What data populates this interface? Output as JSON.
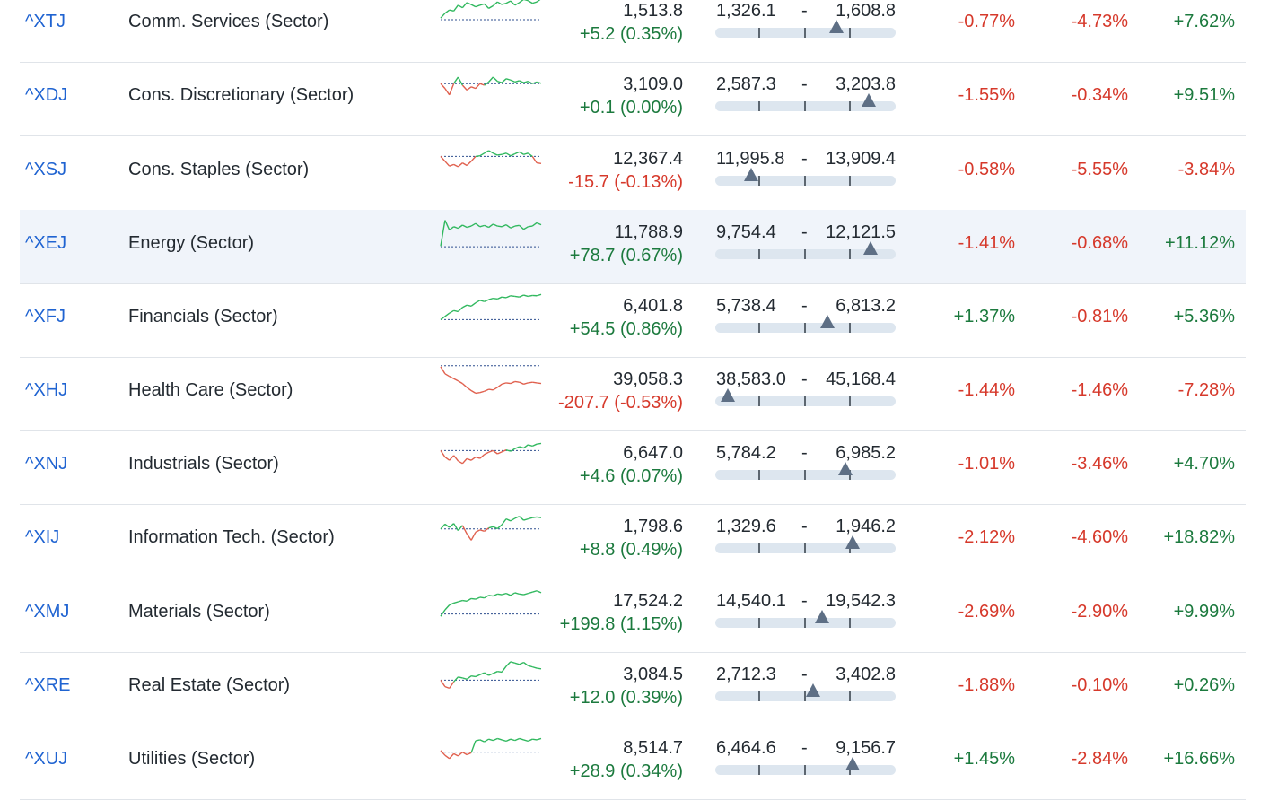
{
  "colors": {
    "up": "#1c7a3e",
    "down": "#d6392b",
    "link": "#1f63d1",
    "spark_up": "#30b85e",
    "spark_down": "#e0604e"
  },
  "rows": [
    {
      "symbol": "^XTJ",
      "name": "Comm. Services (Sector)",
      "price": "1,513.8",
      "change": "+5.2 (0.35%)",
      "dir": "up",
      "low": "1,326.1",
      "high": "1,608.8",
      "range_pos": 0.67,
      "perf": [
        "-0.77%",
        "-4.73%",
        "+7.62%"
      ],
      "perf_dir": [
        "down",
        "down",
        "up"
      ],
      "spark": [
        0.3,
        0.45,
        0.55,
        0.52,
        0.7,
        0.62,
        0.78,
        0.72,
        0.65,
        0.7,
        0.74,
        0.6,
        0.68,
        0.8,
        0.72,
        0.76,
        0.83,
        0.7,
        0.78,
        0.88,
        0.84,
        0.76,
        0.8,
        0.9
      ],
      "spark_base": 0.25
    },
    {
      "symbol": "^XDJ",
      "name": "Cons. Discretionary (Sector)",
      "price": "3,109.0",
      "change": "+0.1 (0.00%)",
      "dir": "up",
      "low": "2,587.3",
      "high": "3,203.8",
      "range_pos": 0.85,
      "perf": [
        "-1.55%",
        "-0.34%",
        "+9.51%"
      ],
      "perf_dir": [
        "down",
        "down",
        "up"
      ],
      "spark": [
        0.55,
        0.4,
        0.2,
        0.55,
        0.75,
        0.5,
        0.35,
        0.45,
        0.4,
        0.55,
        0.5,
        0.6,
        0.75,
        0.62,
        0.58,
        0.7,
        0.66,
        0.6,
        0.64,
        0.58,
        0.62,
        0.55,
        0.6,
        0.56
      ],
      "spark_base": 0.55
    },
    {
      "symbol": "^XSJ",
      "name": "Cons. Staples (Sector)",
      "price": "12,367.4",
      "change": "-15.7 (-0.13%)",
      "dir": "down",
      "low": "11,995.8",
      "high": "13,909.4",
      "range_pos": 0.2,
      "perf": [
        "-0.58%",
        "-5.55%",
        "-3.84%"
      ],
      "perf_dir": [
        "down",
        "down",
        "down"
      ],
      "spark": [
        0.6,
        0.45,
        0.3,
        0.35,
        0.28,
        0.4,
        0.32,
        0.45,
        0.6,
        0.62,
        0.7,
        0.78,
        0.7,
        0.64,
        0.66,
        0.7,
        0.62,
        0.68,
        0.74,
        0.66,
        0.7,
        0.6,
        0.4,
        0.38
      ],
      "spark_base": 0.6
    },
    {
      "symbol": "^XEJ",
      "name": "Energy (Sector)",
      "price": "11,788.9",
      "change": "+78.7 (0.67%)",
      "dir": "up",
      "low": "9,754.4",
      "high": "12,121.5",
      "range_pos": 0.86,
      "perf": [
        "-1.41%",
        "-0.68%",
        "+11.12%"
      ],
      "perf_dir": [
        "down",
        "down",
        "up"
      ],
      "spark": [
        0.1,
        0.9,
        0.6,
        0.7,
        0.65,
        0.75,
        0.68,
        0.72,
        0.8,
        0.7,
        0.74,
        0.68,
        0.78,
        0.72,
        0.7,
        0.76,
        0.66,
        0.72,
        0.74,
        0.62,
        0.7,
        0.72,
        0.82,
        0.76
      ],
      "spark_base": 0.08
    },
    {
      "symbol": "^XFJ",
      "name": "Financials (Sector)",
      "price": "6,401.8",
      "change": "+54.5 (0.86%)",
      "dir": "up",
      "low": "5,738.4",
      "high": "6,813.2",
      "range_pos": 0.62,
      "perf": [
        "+1.37%",
        "-0.81%",
        "+5.36%"
      ],
      "perf_dir": [
        "up",
        "down",
        "up"
      ],
      "spark": [
        0.1,
        0.2,
        0.3,
        0.38,
        0.35,
        0.48,
        0.55,
        0.52,
        0.62,
        0.7,
        0.66,
        0.72,
        0.76,
        0.74,
        0.8,
        0.78,
        0.84,
        0.82,
        0.8,
        0.86,
        0.82,
        0.85,
        0.84,
        0.88
      ],
      "spark_base": 0.1
    },
    {
      "symbol": "^XHJ",
      "name": "Health Care (Sector)",
      "price": "39,058.3",
      "change": "-207.7 (-0.53%)",
      "dir": "down",
      "low": "38,583.0",
      "high": "45,168.4",
      "range_pos": 0.07,
      "perf": [
        "-1.44%",
        "-1.46%",
        "-7.28%"
      ],
      "perf_dir": [
        "down",
        "down",
        "down"
      ],
      "spark": [
        0.92,
        0.7,
        0.62,
        0.55,
        0.48,
        0.4,
        0.28,
        0.18,
        0.1,
        0.12,
        0.16,
        0.22,
        0.2,
        0.28,
        0.38,
        0.42,
        0.4,
        0.46,
        0.44,
        0.38,
        0.42,
        0.44,
        0.42,
        0.4
      ],
      "spark_base": 0.95
    },
    {
      "symbol": "^XNJ",
      "name": "Industrials (Sector)",
      "price": "6,647.0",
      "change": "+4.6 (0.07%)",
      "dir": "up",
      "low": "5,784.2",
      "high": "6,985.2",
      "range_pos": 0.72,
      "perf": [
        "-1.01%",
        "-3.46%",
        "+4.70%"
      ],
      "perf_dir": [
        "down",
        "down",
        "up"
      ],
      "spark": [
        0.6,
        0.4,
        0.3,
        0.45,
        0.28,
        0.2,
        0.35,
        0.3,
        0.4,
        0.36,
        0.48,
        0.55,
        0.6,
        0.5,
        0.56,
        0.62,
        0.58,
        0.66,
        0.72,
        0.68,
        0.78,
        0.74,
        0.8,
        0.82
      ],
      "spark_base": 0.6
    },
    {
      "symbol": "^XIJ",
      "name": "Information Tech. (Sector)",
      "price": "1,798.6",
      "change": "+8.8 (0.49%)",
      "dir": "up",
      "low": "1,329.6",
      "high": "1,946.2",
      "range_pos": 0.76,
      "perf": [
        "-2.12%",
        "-4.60%",
        "+18.82%"
      ],
      "perf_dir": [
        "down",
        "down",
        "up"
      ],
      "spark": [
        0.45,
        0.6,
        0.5,
        0.62,
        0.4,
        0.56,
        0.3,
        0.1,
        0.35,
        0.42,
        0.38,
        0.48,
        0.52,
        0.46,
        0.58,
        0.76,
        0.7,
        0.78,
        0.84,
        0.72,
        0.76,
        0.8,
        0.82,
        0.8
      ],
      "spark_base": 0.45
    },
    {
      "symbol": "^XMJ",
      "name": "Materials (Sector)",
      "price": "17,524.2",
      "change": "+199.8 (1.15%)",
      "dir": "up",
      "low": "14,540.1",
      "high": "19,542.3",
      "range_pos": 0.59,
      "perf": [
        "-2.69%",
        "-2.90%",
        "+9.99%"
      ],
      "perf_dir": [
        "down",
        "down",
        "up"
      ],
      "spark": [
        0.05,
        0.25,
        0.4,
        0.46,
        0.5,
        0.54,
        0.52,
        0.6,
        0.58,
        0.64,
        0.62,
        0.7,
        0.68,
        0.74,
        0.72,
        0.76,
        0.7,
        0.78,
        0.74,
        0.72,
        0.76,
        0.8,
        0.84,
        0.78
      ],
      "spark_base": 0.12
    },
    {
      "symbol": "^XRE",
      "name": "Real Estate (Sector)",
      "price": "3,084.5",
      "change": "+12.0 (0.39%)",
      "dir": "up",
      "low": "2,712.3",
      "high": "3,402.8",
      "range_pos": 0.54,
      "perf": [
        "-1.88%",
        "-0.10%",
        "+0.26%"
      ],
      "perf_dir": [
        "down",
        "down",
        "up"
      ],
      "spark": [
        0.35,
        0.15,
        0.1,
        0.3,
        0.45,
        0.42,
        0.38,
        0.48,
        0.46,
        0.52,
        0.58,
        0.5,
        0.56,
        0.62,
        0.6,
        0.78,
        0.92,
        0.88,
        0.84,
        0.9,
        0.8,
        0.76,
        0.72,
        0.7
      ],
      "spark_base": 0.35
    },
    {
      "symbol": "^XUJ",
      "name": "Utilities (Sector)",
      "price": "8,514.7",
      "change": "+28.9 (0.34%)",
      "dir": "up",
      "low": "6,464.6",
      "high": "9,156.7",
      "range_pos": 0.76,
      "perf": [
        "+1.45%",
        "-2.84%",
        "+16.66%"
      ],
      "perf_dir": [
        "up",
        "down",
        "up"
      ],
      "spark": [
        0.45,
        0.3,
        0.2,
        0.35,
        0.28,
        0.4,
        0.32,
        0.38,
        0.75,
        0.78,
        0.72,
        0.8,
        0.76,
        0.82,
        0.78,
        0.74,
        0.8,
        0.76,
        0.82,
        0.78,
        0.74,
        0.8,
        0.78,
        0.82
      ],
      "spark_base": 0.4
    }
  ]
}
